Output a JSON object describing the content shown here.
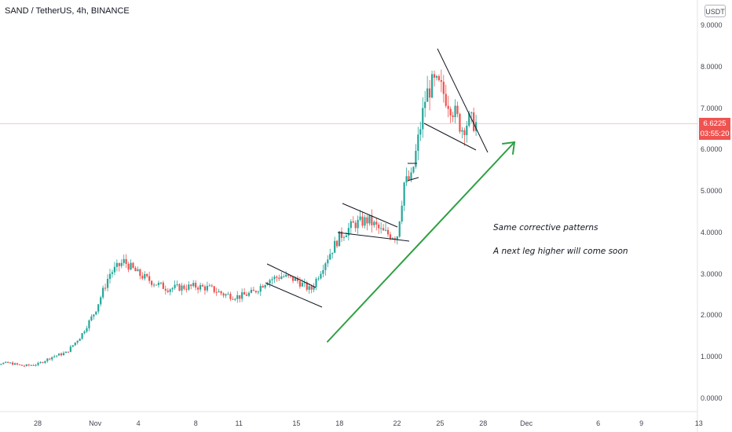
{
  "header": {
    "symbol_title": "SAND / TetherUS, 4h, BINANCE",
    "currency": "USDT"
  },
  "price_tag": {
    "price": "6.6225",
    "countdown": "03:55:20",
    "color": "#ef5350"
  },
  "annotations": {
    "line1": "Same corrective patterns",
    "line2": "A next leg higher will come soon"
  },
  "colors": {
    "up": "#26a69a",
    "down": "#ef5350",
    "arrow": "#2ea043",
    "pattern": "#131722",
    "price_line": "#ef5350"
  },
  "chart_data": {
    "type": "candlestick",
    "y_axis_ticks": [
      "9.0000",
      "8.0000",
      "7.0000",
      "6.0000",
      "5.0000",
      "4.0000",
      "3.0000",
      "2.0000",
      "1.0000",
      "0.0000"
    ],
    "ylim": [
      0,
      9
    ],
    "x_axis_ticks": [
      "28",
      "Nov",
      "4",
      "8",
      "11",
      "15",
      "18",
      "22",
      "25",
      "28",
      "Dec",
      "6",
      "9",
      "13"
    ],
    "x_tick_dates": [
      "2021-10-28",
      "2021-11-01",
      "2021-11-04",
      "2021-11-08",
      "2021-11-11",
      "2021-11-15",
      "2021-11-18",
      "2021-11-22",
      "2021-11-25",
      "2021-11-28",
      "2021-12-01",
      "2021-12-06",
      "2021-12-09",
      "2021-12-13"
    ],
    "interval": "4h",
    "last_price": 6.6225,
    "price_path": [
      {
        "date": "2021-10-24",
        "close": 0.82
      },
      {
        "date": "2021-10-26",
        "close": 0.85
      },
      {
        "date": "2021-10-27",
        "close": 0.78
      },
      {
        "date": "2021-10-28",
        "close": 0.82
      },
      {
        "date": "2021-10-29",
        "close": 1.0
      },
      {
        "date": "2021-10-30",
        "close": 1.1
      },
      {
        "date": "2021-10-31",
        "close": 1.5
      },
      {
        "date": "2021-11-01",
        "close": 2.1
      },
      {
        "date": "2021-11-02",
        "close": 3.0
      },
      {
        "date": "2021-11-03",
        "close": 3.3
      },
      {
        "date": "2021-11-04",
        "close": 3.0
      },
      {
        "date": "2021-11-05",
        "close": 2.8
      },
      {
        "date": "2021-11-06",
        "close": 2.65
      },
      {
        "date": "2021-11-08",
        "close": 2.7
      },
      {
        "date": "2021-11-09",
        "close": 2.65
      },
      {
        "date": "2021-11-10",
        "close": 2.5
      },
      {
        "date": "2021-11-11",
        "close": 2.45
      },
      {
        "date": "2021-11-12",
        "close": 2.55
      },
      {
        "date": "2021-11-13",
        "close": 2.85
      },
      {
        "date": "2021-11-14",
        "close": 2.95
      },
      {
        "date": "2021-11-15",
        "close": 2.85
      },
      {
        "date": "2021-11-16",
        "close": 2.6
      },
      {
        "date": "2021-11-17",
        "close": 3.3
      },
      {
        "date": "2021-11-18",
        "close": 3.9
      },
      {
        "date": "2021-11-19",
        "close": 4.2
      },
      {
        "date": "2021-11-20",
        "close": 4.3
      },
      {
        "date": "2021-11-21",
        "close": 4.0
      },
      {
        "date": "2021-11-22",
        "close": 3.9
      },
      {
        "date": "2021-11-22T12",
        "close": 5.2
      },
      {
        "date": "2021-11-23",
        "close": 5.3
      },
      {
        "date": "2021-11-23T12",
        "close": 6.3
      },
      {
        "date": "2021-11-24",
        "close": 7.3
      },
      {
        "date": "2021-11-24T12",
        "close": 7.6
      },
      {
        "date": "2021-11-25",
        "close": 7.5
      },
      {
        "date": "2021-11-25T12",
        "close": 7.2
      },
      {
        "date": "2021-11-26",
        "close": 6.9
      },
      {
        "date": "2021-11-26T12",
        "close": 6.5
      },
      {
        "date": "2021-11-27",
        "close": 6.7
      },
      {
        "date": "2021-11-27T12",
        "close": 6.6225
      }
    ]
  }
}
